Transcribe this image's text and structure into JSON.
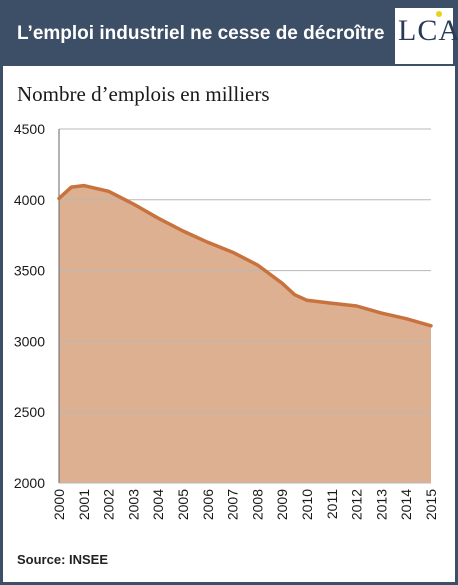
{
  "header": {
    "title": "L’emploi industriel ne cesse de décroître",
    "logo_text": "LCA"
  },
  "colors": {
    "header_bg": "#3d4f66",
    "area_fill": "#ddb092",
    "line": "#c8723d",
    "grid": "#b8b8b8"
  },
  "source": "Source: INSEE",
  "chart_data": {
    "type": "area",
    "title": "Nombre d’emplois en milliers",
    "xlabel": "",
    "ylabel": "",
    "categories": [
      "2000",
      "2001",
      "2002",
      "2003",
      "2004",
      "2005",
      "2006",
      "2007",
      "2008",
      "2009",
      "2010",
      "2011",
      "2012",
      "2013",
      "2014",
      "2015"
    ],
    "x": [
      2000,
      2000.5,
      2001,
      2002,
      2003,
      2004,
      2005,
      2006,
      2007,
      2008,
      2009,
      2009.5,
      2010,
      2011,
      2012,
      2013,
      2014,
      2015
    ],
    "series": [
      {
        "values": [
          4010,
          4090,
          4100,
          4060,
          3970,
          3870,
          3780,
          3700,
          3630,
          3540,
          3410,
          3330,
          3290,
          3270,
          3250,
          3200,
          3160,
          3110
        ]
      }
    ],
    "ylim": [
      2000,
      4500
    ],
    "yticks": [
      2000,
      2500,
      3000,
      3500,
      4000,
      4500
    ],
    "grid": true,
    "legend": "none"
  }
}
